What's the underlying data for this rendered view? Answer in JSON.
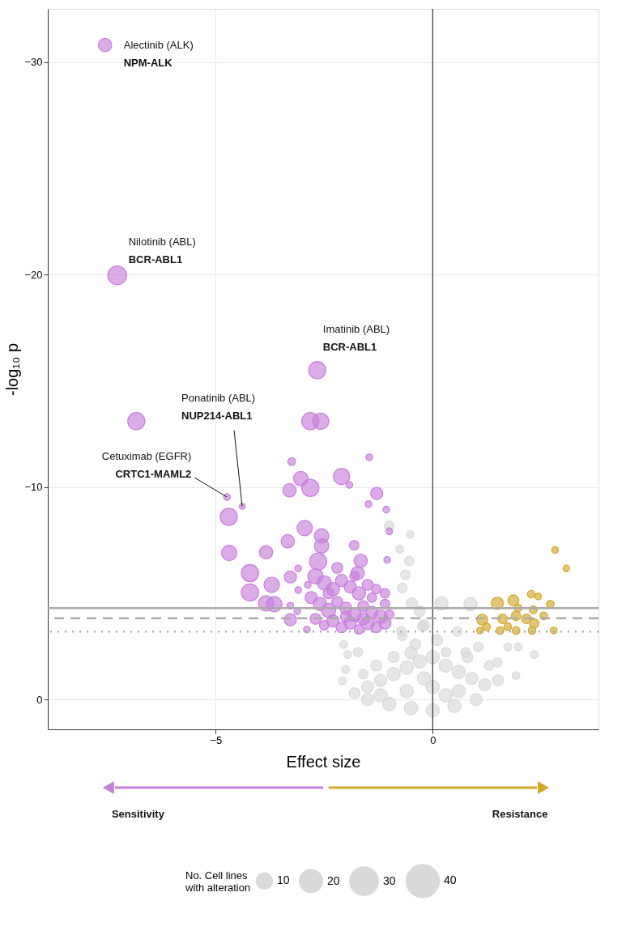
{
  "chart_data": {
    "type": "bubble",
    "xlabel": "Effect size",
    "ylabel": "-log₁₀ p",
    "xlim": [
      -8.87,
      3.82
    ],
    "ylim": [
      1.4,
      -32.5
    ],
    "xticks": [
      -5,
      0
    ],
    "yticks": [
      -30,
      -20,
      -10,
      0
    ],
    "grid": true,
    "marker": "circle",
    "legend_title": "No. Cell lines\nwith alteration",
    "size_legend": [
      10,
      20,
      30,
      40
    ],
    "ref_lines": [
      {
        "axis": "x",
        "value": 0,
        "color": "#333333",
        "line_style": "solid"
      },
      {
        "axis": "y",
        "value": -4.3,
        "color": "#aaaaaa",
        "line_style": "solid"
      },
      {
        "axis": "y",
        "value": -3.83,
        "color": "#aaaaaa",
        "line_style": "dashed"
      },
      {
        "axis": "y",
        "value": -3.2,
        "color": "#aaaaaa",
        "line_style": "dotted"
      }
    ],
    "annotations": [
      "Alectinib (ALK)",
      {
        "text": "NPM-ALK",
        "x": -7.55,
        "y": -30.8
      },
      "Nilotinib (ABL)",
      {
        "text": "BCR-ABL1",
        "x": -7.27,
        "y": -19.96
      },
      "Imatinib (ABL)",
      {
        "text": "BCR-ABL1",
        "x": -2.66,
        "y": -15.5
      },
      "Ponatinib (ABL)",
      {
        "text": "NUP214-ABL1",
        "x": -4.39,
        "y": -9.09
      },
      "Cetuximab (EGFR)",
      {
        "text": "CRTC1-MAML2",
        "x": -4.74,
        "y": -9.53
      },
      "Sensitivity",
      "Resistance"
    ],
    "series": [
      {
        "color": "#d9d9d9",
        "x": [
          -0.52,
          -0.76,
          -0.54,
          -1.0,
          -0.63,
          -0.7,
          -0.48,
          -0.3,
          0.2,
          0.87,
          -0.72,
          -0.24,
          0.57,
          -2.05,
          -1.96,
          -2.01,
          -2.08,
          -1.72,
          0.31,
          0.76,
          1.05,
          1.73,
          1.97,
          2.34,
          1.92,
          1.49,
          -1.8,
          -1.5,
          -1.2,
          -0.9,
          -0.6,
          -0.3,
          0,
          0.3,
          0.6,
          0.9,
          1.2,
          1.5,
          -1.5,
          -1.0,
          -0.5,
          0,
          0.5,
          1.0,
          -1.2,
          -0.6,
          0,
          0.6,
          -0.9,
          -1.3,
          -0.4,
          -0.7,
          0.1,
          -0.2,
          -0.5,
          0.3,
          -0.2,
          0.8,
          1.3,
          -1.6
        ],
        "values": [
          -7.77,
          -7.08,
          -6.53,
          -8.18,
          -5.88,
          -5.26,
          -4.53,
          -4.16,
          -4.53,
          -4.49,
          -3.21,
          -3.43,
          -3.21,
          -2.59,
          -2.12,
          -1.42,
          -0.88,
          -2.23,
          -2.23,
          -2.23,
          -2.48,
          -2.48,
          -2.48,
          -2.12,
          -1.13,
          -1.75,
          -0.3,
          -0.6,
          -0.9,
          -1.2,
          -1.5,
          -1.8,
          -2.0,
          -1.6,
          -1.3,
          -1.0,
          -0.7,
          -0.9,
          0.0,
          0.2,
          0.4,
          0.5,
          0.3,
          0.0,
          -0.2,
          -0.4,
          -0.6,
          -0.4,
          -2.0,
          -1.6,
          -2.6,
          -3.0,
          -2.8,
          -3.5,
          -2.2,
          -0.2,
          -1.0,
          -2.0,
          -1.6,
          -1.2
        ],
        "sizes": [
          2,
          2,
          3,
          3,
          3,
          3,
          4,
          4,
          6,
          6,
          3,
          3,
          3,
          2,
          2,
          2,
          2,
          3,
          3,
          3,
          3,
          2,
          2,
          2,
          2,
          3,
          4,
          5,
          5,
          6,
          6,
          6,
          6,
          6,
          6,
          5,
          5,
          4,
          5,
          6,
          6,
          6,
          6,
          5,
          6,
          6,
          6,
          6,
          4,
          4,
          4,
          3,
          4,
          4,
          5,
          6,
          6,
          4,
          3,
          3
        ]
      },
      {
        "color": "#c77fdc",
        "x": [
          -7.55,
          -7.27,
          -2.66,
          -6.83,
          -2.82,
          -2.58,
          -4.74,
          -4.39,
          -4.7,
          -3.25,
          -1.46,
          -2.1,
          -1.92,
          -3.04,
          -3.3,
          -2.82,
          -1.29,
          -1.48,
          -1.07,
          -2.95,
          -3.34,
          -2.56,
          -2.56,
          -4.69,
          -3.84,
          -1.81,
          -1.0,
          -1.05,
          -2.64,
          -1.66,
          -4.21,
          -3.1,
          -3.28,
          -1.73,
          -3.71,
          -4.21,
          -3.84,
          -3.65,
          -3.28,
          -3.28,
          -3.12,
          -3.1,
          -2.88,
          -2.7,
          -2.5,
          -2.3,
          -2.1,
          -1.9,
          -1.7,
          -1.5,
          -1.3,
          -1.1,
          -2.8,
          -2.6,
          -2.4,
          -2.2,
          -2.0,
          -1.8,
          -1.6,
          -1.4,
          -1.2,
          -1.1,
          -2.7,
          -2.5,
          -2.3,
          -2.1,
          -1.9,
          -1.7,
          -1.5,
          -1.3,
          -1.1,
          -1.0,
          -2.0,
          -1.6,
          -2.9,
          -1.4,
          -2.4,
          -1.8,
          -2.2
        ],
        "values": [
          -30.8,
          -19.96,
          -15.5,
          -13.1,
          -13.1,
          -13.1,
          -9.53,
          -9.09,
          -8.6,
          -11.2,
          -11.4,
          -10.5,
          -10.1,
          -10.4,
          -9.85,
          -9.96,
          -9.7,
          -9.2,
          -8.94,
          -8.07,
          -7.45,
          -7.7,
          -7.23,
          -6.9,
          -6.93,
          -7.26,
          -7.92,
          -6.57,
          -6.5,
          -6.53,
          -5.95,
          -6.17,
          -5.77,
          -5.95,
          -5.4,
          -5.04,
          -4.53,
          -4.49,
          -3.76,
          -4.42,
          -4.16,
          -5.15,
          -5.4,
          -5.8,
          -5.5,
          -5.2,
          -5.6,
          -5.3,
          -5.0,
          -5.4,
          -5.2,
          -5.0,
          -4.8,
          -4.5,
          -4.2,
          -4.6,
          -4.3,
          -4.0,
          -4.4,
          -4.1,
          -3.9,
          -4.5,
          -3.8,
          -3.5,
          -3.7,
          -3.4,
          -3.6,
          -3.3,
          -3.6,
          -3.4,
          -3.6,
          -4.0,
          -3.9,
          -3.8,
          -3.3,
          -4.8,
          -5.0,
          -5.8,
          -6.2
        ],
        "sizes": [
          6,
          12,
          10,
          10,
          10,
          9,
          1.5,
          1.2,
          10,
          2,
          1.5,
          9,
          1.5,
          7,
          6,
          10,
          5,
          1.5,
          1.5,
          8,
          6,
          7,
          7,
          8,
          6,
          3,
          1.5,
          1.5,
          10,
          6,
          10,
          1.5,
          5,
          6,
          8,
          10,
          8,
          8,
          5,
          1.5,
          1.5,
          1.5,
          1.5,
          8,
          7,
          6,
          5,
          5,
          6,
          4,
          3,
          3,
          5,
          6,
          7,
          4,
          5,
          6,
          4,
          5,
          6,
          3,
          4,
          3,
          5,
          4,
          5,
          3,
          6,
          4,
          5,
          3,
          4,
          5,
          1.5,
          3,
          4,
          3,
          4
        ]
      },
      {
        "color": "#d4a82a",
        "x": [
          2.82,
          3.08,
          1.49,
          1.86,
          2.27,
          2.43,
          2.71,
          1.14,
          1.09,
          1.61,
          1.92,
          2.16,
          2.34,
          2.56,
          2.79,
          1.55,
          1.92,
          2.29,
          2.32,
          1.97,
          1.24,
          1.73
        ],
        "values": [
          -7.04,
          -6.17,
          -4.53,
          -4.67,
          -4.96,
          -4.85,
          -4.49,
          -3.76,
          -3.25,
          -3.8,
          -3.94,
          -3.8,
          -3.58,
          -3.94,
          -3.25,
          -3.25,
          -3.25,
          -3.25,
          -4.23,
          -4.31,
          -3.43,
          -3.43
        ],
        "sizes": [
          1.5,
          1.5,
          5,
          4,
          2,
          1.5,
          2,
          4,
          1.5,
          3,
          3,
          3,
          3,
          2,
          1.5,
          2,
          2,
          2,
          2,
          2,
          2,
          2
        ]
      }
    ]
  }
}
